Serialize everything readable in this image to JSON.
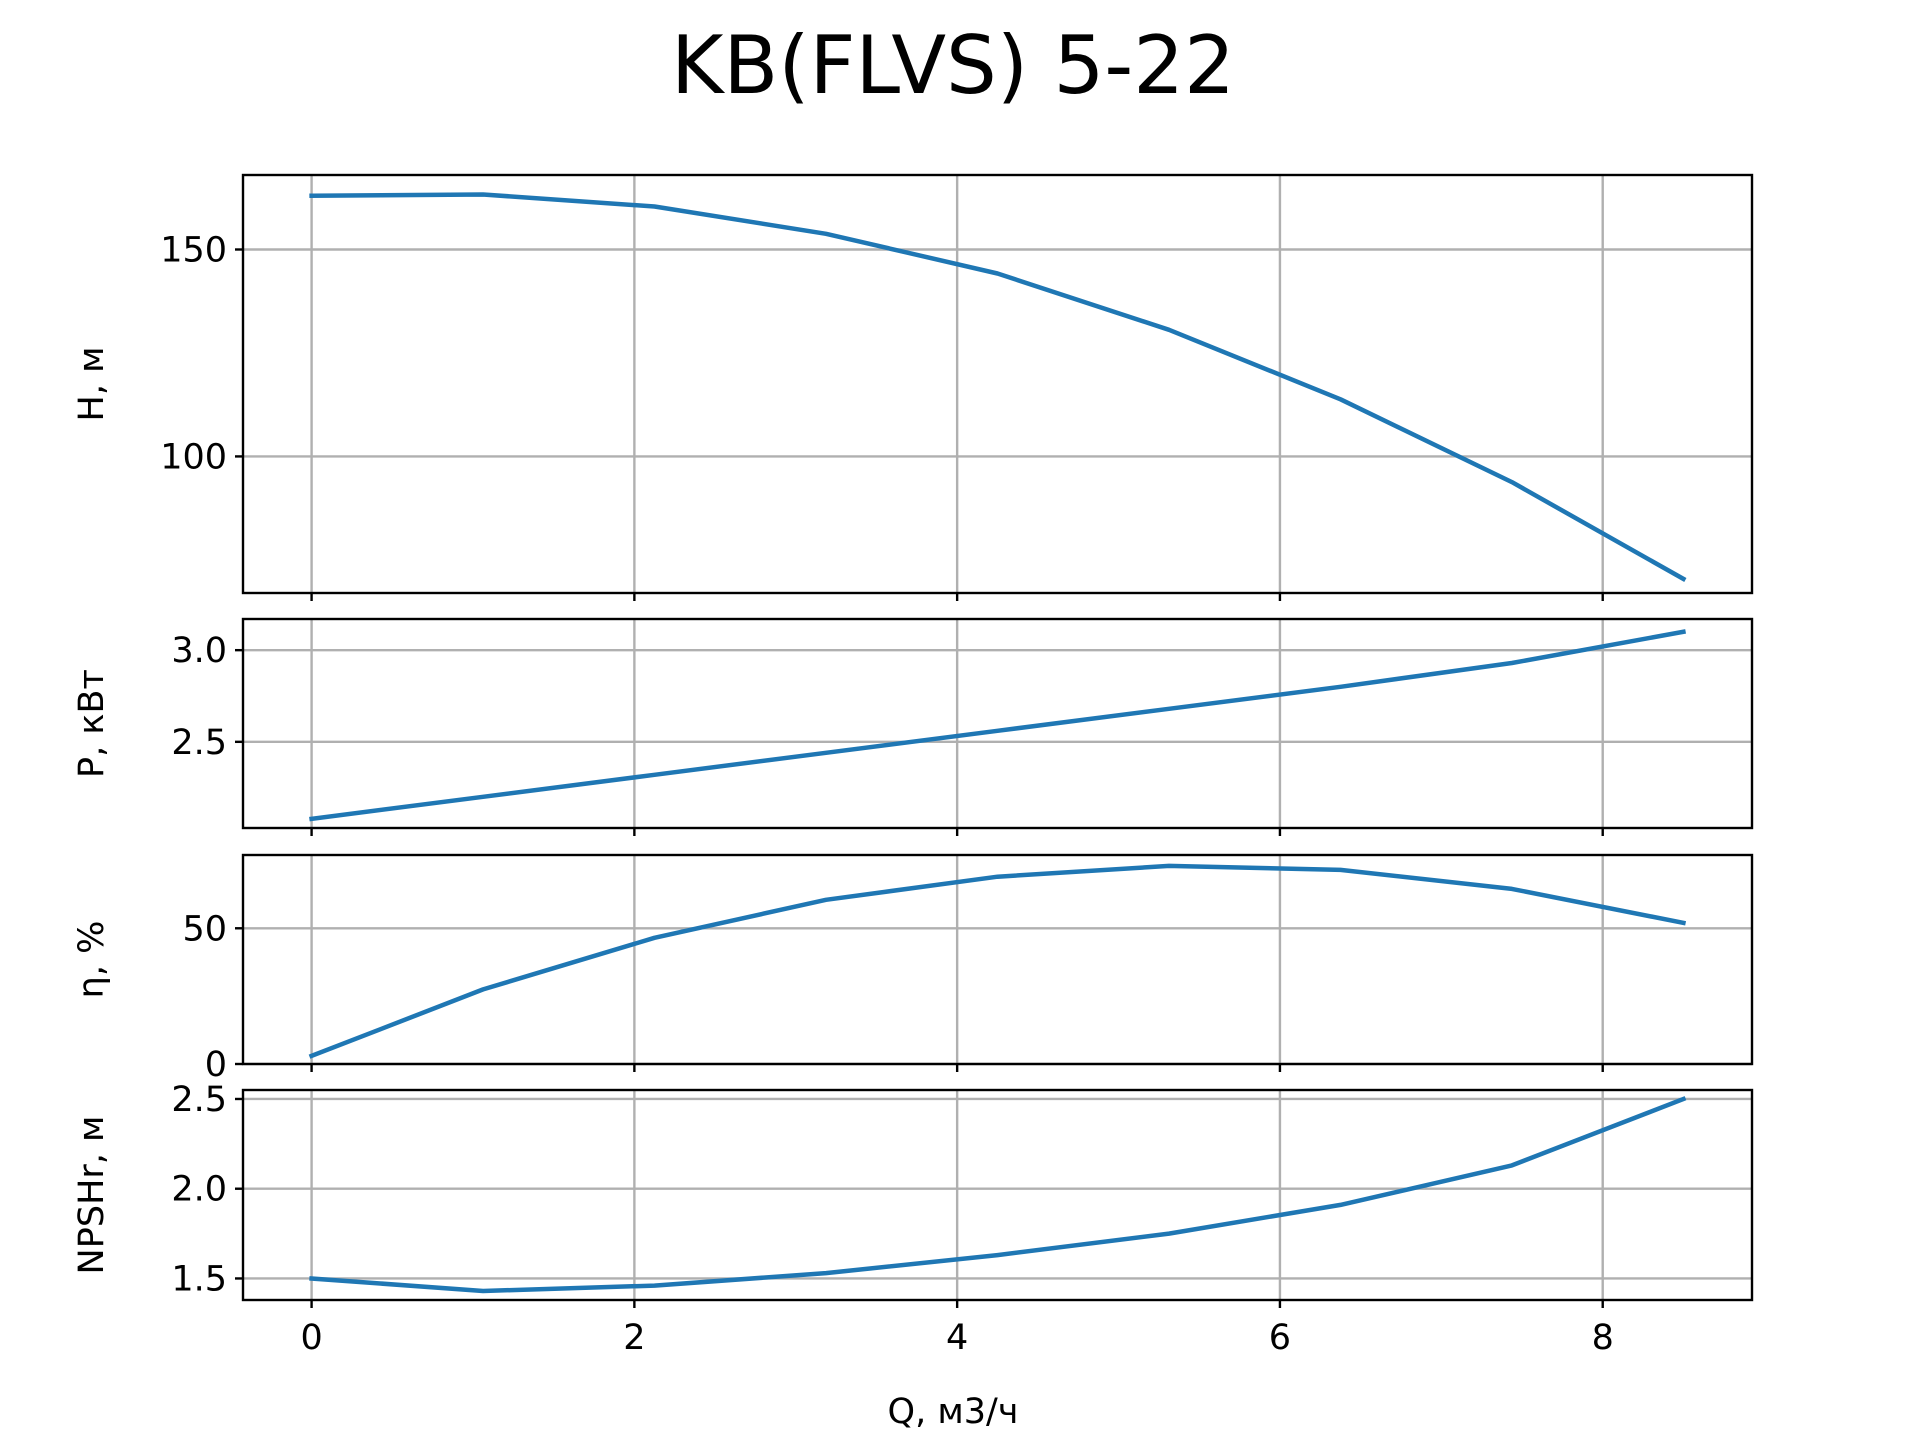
{
  "chart_data": {
    "type": "line",
    "title": "KB(FLVS) 5-22",
    "xlabel": "Q, м3/ч",
    "xlim": [
      -0.425,
      8.925
    ],
    "x_ticks": [
      0,
      2,
      4,
      6,
      8
    ],
    "x_tick_labels": [
      "0",
      "2",
      "4",
      "6",
      "8"
    ],
    "grid": true,
    "line_color": "#1f77b4",
    "subplots": [
      {
        "key": "head",
        "ylabel": "H, м",
        "ylim": [
          67,
          168
        ],
        "y_ticks": [
          100,
          150
        ],
        "y_tick_labels": [
          "100",
          "150"
        ],
        "series": [
          {
            "x": [
              0,
              1.0625,
              2.125,
              3.1875,
              4.25,
              5.3125,
              6.375,
              7.4375,
              8.5
            ],
            "y": [
              163,
              163.3,
              160.4,
              153.8,
              144.2,
              130.6,
              113.8,
              93.8,
              70.4
            ]
          }
        ]
      },
      {
        "key": "power",
        "ylabel": "P, кВт",
        "ylim": [
          2.03,
          3.17
        ],
        "y_ticks": [
          2.5,
          3.0
        ],
        "y_tick_labels": [
          "2.5",
          "3.0"
        ],
        "series": [
          {
            "x": [
              0,
              1.0625,
              2.125,
              3.1875,
              4.25,
              5.3125,
              6.375,
              7.4375,
              8.5
            ],
            "y": [
              2.08,
              2.2,
              2.32,
              2.44,
              2.56,
              2.68,
              2.8,
              2.93,
              3.1
            ]
          }
        ]
      },
      {
        "key": "efficiency",
        "ylabel": "η, %",
        "ylim": [
          0,
          77
        ],
        "y_ticks": [
          0,
          50
        ],
        "y_tick_labels": [
          "0",
          "50"
        ],
        "series": [
          {
            "x": [
              0,
              1.0625,
              2.125,
              3.1875,
              4.25,
              5.3125,
              6.375,
              7.4375,
              8.5
            ],
            "y": [
              3,
              27.5,
              46.5,
              60.5,
              69,
              73,
              71.5,
              64.5,
              52
            ]
          }
        ]
      },
      {
        "key": "npsh",
        "ylabel": "NPSHr, м",
        "ylim": [
          1.38,
          2.55
        ],
        "y_ticks": [
          1.5,
          2.0,
          2.5
        ],
        "y_tick_labels": [
          "1.5",
          "2.0",
          "2.5"
        ],
        "series": [
          {
            "x": [
              0,
              1.0625,
              2.125,
              3.1875,
              4.25,
              5.3125,
              6.375,
              7.4375,
              8.5
            ],
            "y": [
              1.5,
              1.43,
              1.46,
              1.53,
              1.63,
              1.75,
              1.91,
              2.13,
              2.5
            ]
          }
        ]
      }
    ]
  }
}
